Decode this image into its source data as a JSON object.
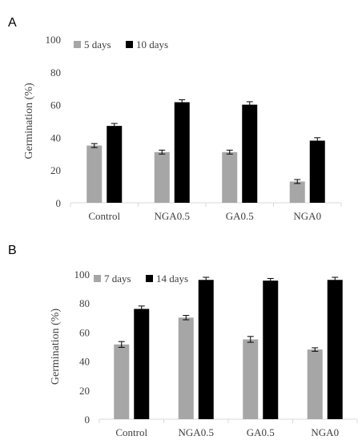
{
  "colors": {
    "series_light": "#a6a6a6",
    "series_dark": "#000000",
    "axis": "#d9d9d9",
    "text": "#404040"
  },
  "chart_data": [
    {
      "panel": "A",
      "type": "bar",
      "categories": [
        "Control",
        "NGA0.5",
        "GA0.5",
        "NGA0"
      ],
      "series": [
        {
          "name": "5 days",
          "values": [
            35,
            31,
            31,
            13
          ],
          "errors": [
            1.2,
            1.2,
            1.2,
            1.2
          ]
        },
        {
          "name": "10 days",
          "values": [
            47,
            61.5,
            60,
            38
          ],
          "errors": [
            1.5,
            1.5,
            1.8,
            1.8
          ]
        }
      ],
      "ylabel": "Germination (%)",
      "yticks": [
        0,
        20,
        40,
        60,
        80,
        100
      ],
      "ylim": [
        0,
        100
      ],
      "grid": false,
      "legend_position": "top-left"
    },
    {
      "panel": "B",
      "type": "bar",
      "categories": [
        "Control",
        "NGA0.5",
        "GA0.5",
        "NGA0"
      ],
      "series": [
        {
          "name": "7 days",
          "values": [
            51.5,
            70,
            55,
            48
          ],
          "errors": [
            2,
            1.5,
            2,
            1.2
          ]
        },
        {
          "name": "14 days",
          "values": [
            76,
            96,
            95.5,
            96
          ],
          "errors": [
            2,
            1.8,
            1.5,
            1.8
          ]
        }
      ],
      "ylabel": "Germination (%)",
      "yticks": [
        0,
        20,
        40,
        60,
        80,
        100
      ],
      "ylim": [
        0,
        100
      ],
      "grid": false,
      "legend_position": "top-left"
    }
  ]
}
